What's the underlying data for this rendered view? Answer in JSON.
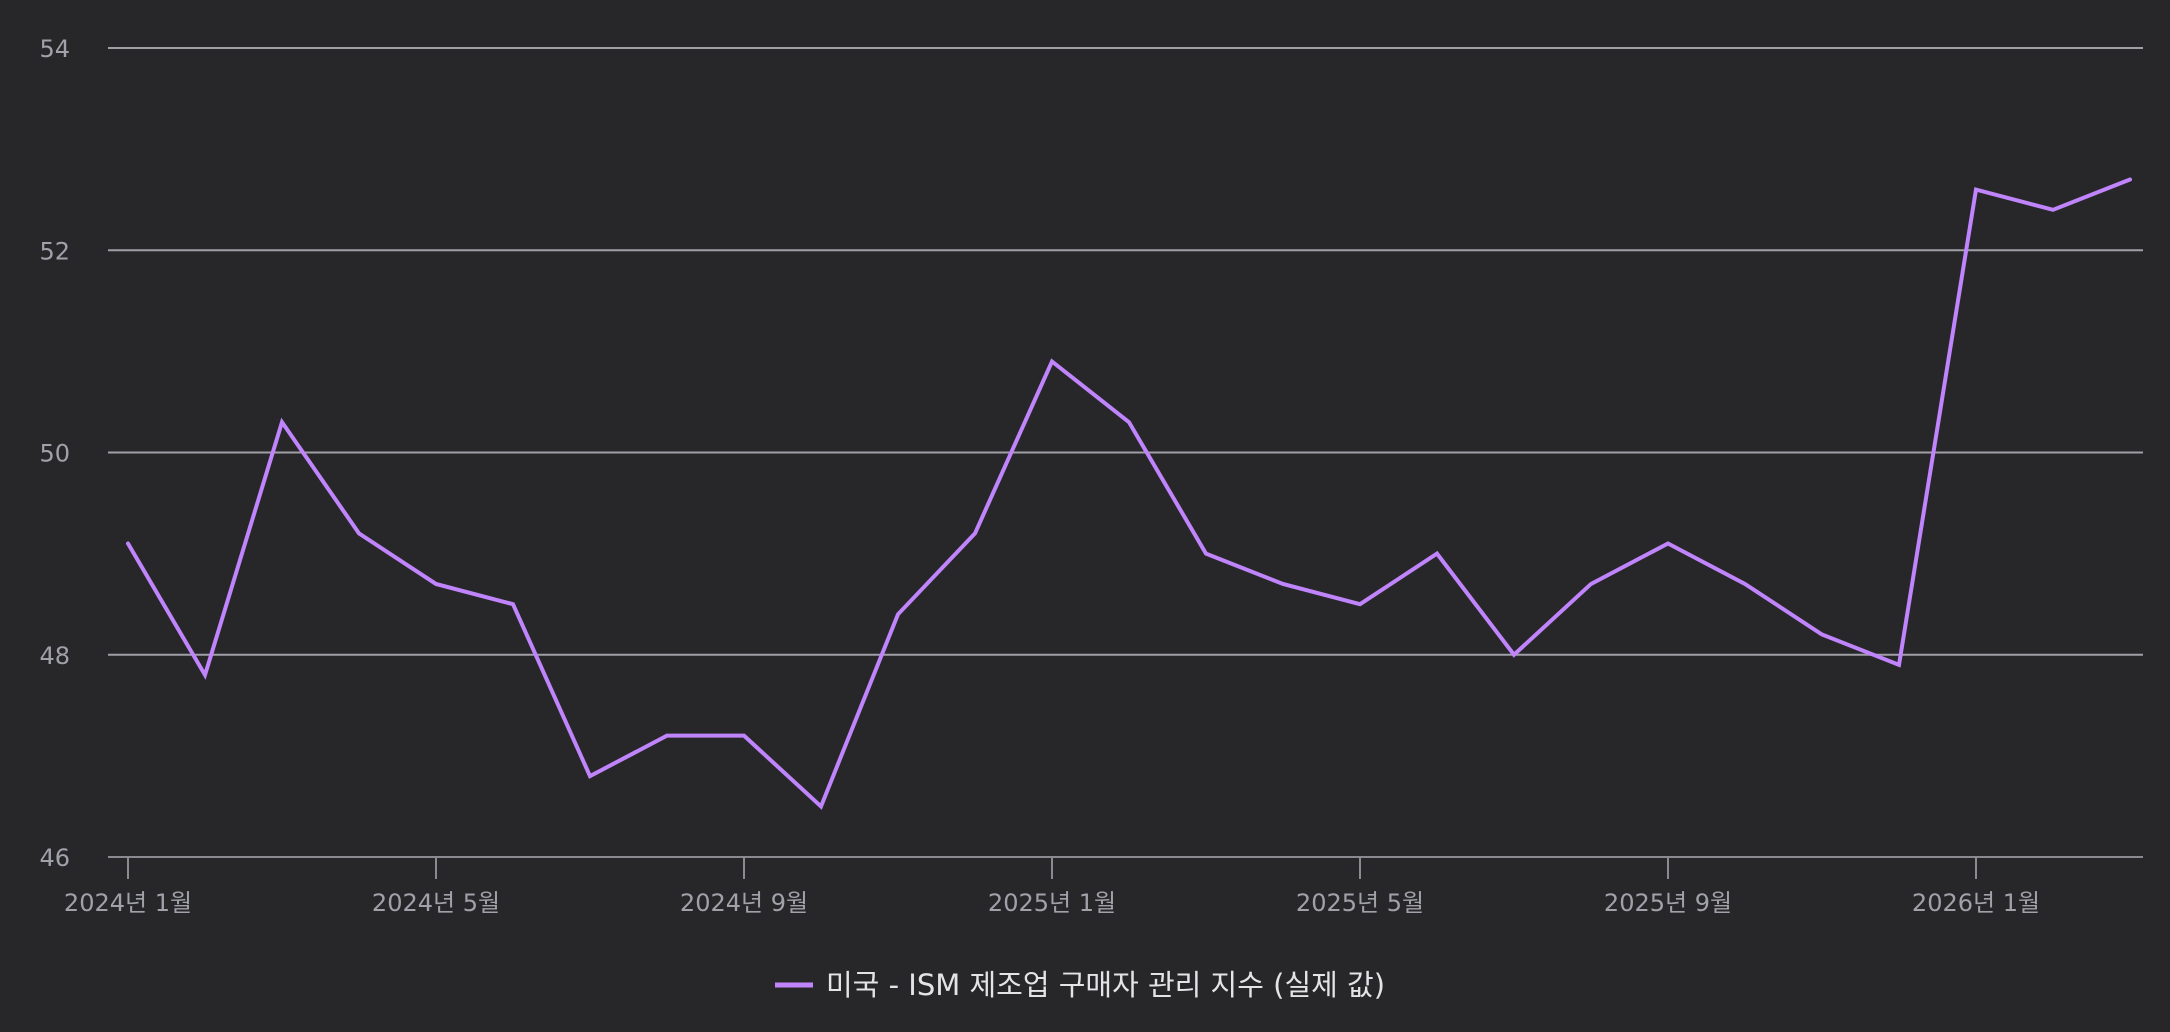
{
  "chart_data": {
    "type": "line",
    "title": "",
    "xlabel": "",
    "ylabel": "",
    "ylim": [
      46,
      54
    ],
    "yticks": [
      46,
      48,
      50,
      52,
      54
    ],
    "grid": true,
    "legend_position": "bottom-center",
    "x_tick_labels": [
      {
        "index": 0,
        "label": "2024년 1월"
      },
      {
        "index": 4,
        "label": "2024년 5월"
      },
      {
        "index": 8,
        "label": "2024년 9월"
      },
      {
        "index": 12,
        "label": "2025년 1월"
      },
      {
        "index": 16,
        "label": "2025년 5월"
      },
      {
        "index": 20,
        "label": "2025년 9월"
      },
      {
        "index": 24,
        "label": "2026년 1월"
      }
    ],
    "x": [
      "2024-01",
      "2024-02",
      "2024-03",
      "2024-04",
      "2024-05",
      "2024-06",
      "2024-07",
      "2024-08",
      "2024-09",
      "2024-10",
      "2024-11",
      "2024-12",
      "2025-01",
      "2025-02",
      "2025-03",
      "2025-04",
      "2025-05",
      "2025-06",
      "2025-07",
      "2025-08",
      "2025-09",
      "2025-10",
      "2025-11",
      "2025-12",
      "2026-01",
      "2026-02",
      "2026-03"
    ],
    "series": [
      {
        "name": "미국 - ISM 제조업 구매자 관리 지수 (실제 값)",
        "color": "#c084fc",
        "values": [
          49.1,
          47.8,
          50.3,
          49.2,
          48.7,
          48.5,
          46.8,
          47.2,
          47.2,
          46.5,
          48.4,
          49.2,
          50.9,
          50.3,
          49.0,
          48.7,
          48.5,
          49.0,
          48.0,
          48.7,
          49.1,
          48.7,
          48.2,
          47.9,
          52.6,
          52.4,
          52.7
        ]
      }
    ]
  }
}
